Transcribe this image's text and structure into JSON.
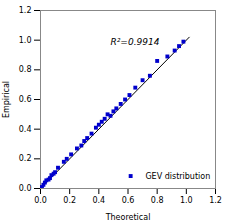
{
  "chart_data": {
    "type": "scatter",
    "xlabel": "Theoretical",
    "ylabel": "Empirical",
    "annotation": "R²=0.9914",
    "legend": "lower right",
    "xlim": [
      0,
      1.2
    ],
    "ylim": [
      0,
      1.2
    ],
    "xticks": [
      {
        "value": 0,
        "label": "0.0"
      },
      0.2,
      0.4,
      0.6,
      0.8,
      {
        "value": 1,
        "label": "1.0"
      },
      1.2
    ],
    "yticks": [
      {
        "value": 0,
        "label": "0.0"
      },
      0.2,
      0.4,
      0.6,
      0.8,
      {
        "value": 1,
        "label": "1.0"
      },
      1.2
    ],
    "series": [
      {
        "type": "line",
        "color": "#000000",
        "x": [
          0,
          1.02
        ],
        "values": [
          0,
          1.02
        ]
      },
      {
        "type": "scatter",
        "name": "GEV distribution",
        "color": "#0000CC",
        "marker": "square",
        "x": [
          0.01,
          0.02,
          0.03,
          0.04,
          0.055,
          0.065,
          0.075,
          0.09,
          0.1,
          0.12,
          0.16,
          0.18,
          0.21,
          0.25,
          0.28,
          0.3,
          0.32,
          0.35,
          0.38,
          0.4,
          0.42,
          0.44,
          0.46,
          0.48,
          0.5,
          0.52,
          0.55,
          0.58,
          0.61,
          0.65,
          0.7,
          0.75,
          0.8,
          0.87,
          0.92,
          0.95,
          0.98
        ],
        "values": [
          0.01,
          0.025,
          0.04,
          0.055,
          0.06,
          0.07,
          0.09,
          0.1,
          0.11,
          0.14,
          0.18,
          0.2,
          0.23,
          0.27,
          0.29,
          0.32,
          0.34,
          0.37,
          0.41,
          0.43,
          0.45,
          0.47,
          0.5,
          0.49,
          0.52,
          0.54,
          0.57,
          0.6,
          0.63,
          0.68,
          0.73,
          0.76,
          0.86,
          0.89,
          0.93,
          0.96,
          0.99
        ]
      }
    ]
  }
}
